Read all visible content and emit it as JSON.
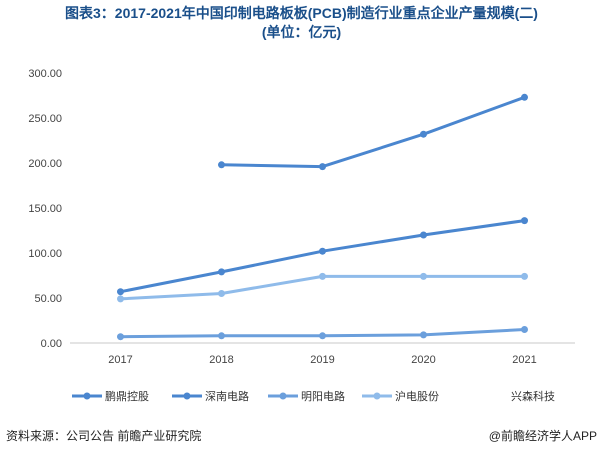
{
  "title_lines": [
    "图表3：2017-2021年中国印制电路板板(PCB)制造行业重点企业产量规模(二)",
    "(单位：亿元)"
  ],
  "source": "资料来源：公司公告 前瞻产业研究院",
  "brand": "@前瞻经济学人APP",
  "chart_data": {
    "type": "line",
    "x": [
      "2017",
      "2018",
      "2019",
      "2020",
      "2021"
    ],
    "ylim": [
      0,
      300
    ],
    "yticks": [
      "0.00",
      "50.00",
      "100.00",
      "150.00",
      "200.00",
      "250.00",
      "300.00"
    ],
    "grid": false,
    "legend_position": "bottom",
    "series": [
      {
        "name": "鹏鼎控股",
        "color": "#4a86cf",
        "values": [
          null,
          198,
          196,
          232,
          273
        ]
      },
      {
        "name": "深南电路",
        "color": "#4a86cf",
        "values": [
          57,
          79,
          102,
          120,
          136
        ]
      },
      {
        "name": "明阳电路",
        "color": "#6b9fdc",
        "values": [
          7,
          8,
          8,
          9,
          15
        ]
      },
      {
        "name": "沪电股份",
        "color": "#8fbbea",
        "values": [
          49,
          55,
          74,
          74,
          74
        ]
      },
      {
        "name": "兴森科技",
        "color": "#8fbbea",
        "values": [
          null,
          null,
          null,
          null,
          null
        ]
      }
    ]
  }
}
